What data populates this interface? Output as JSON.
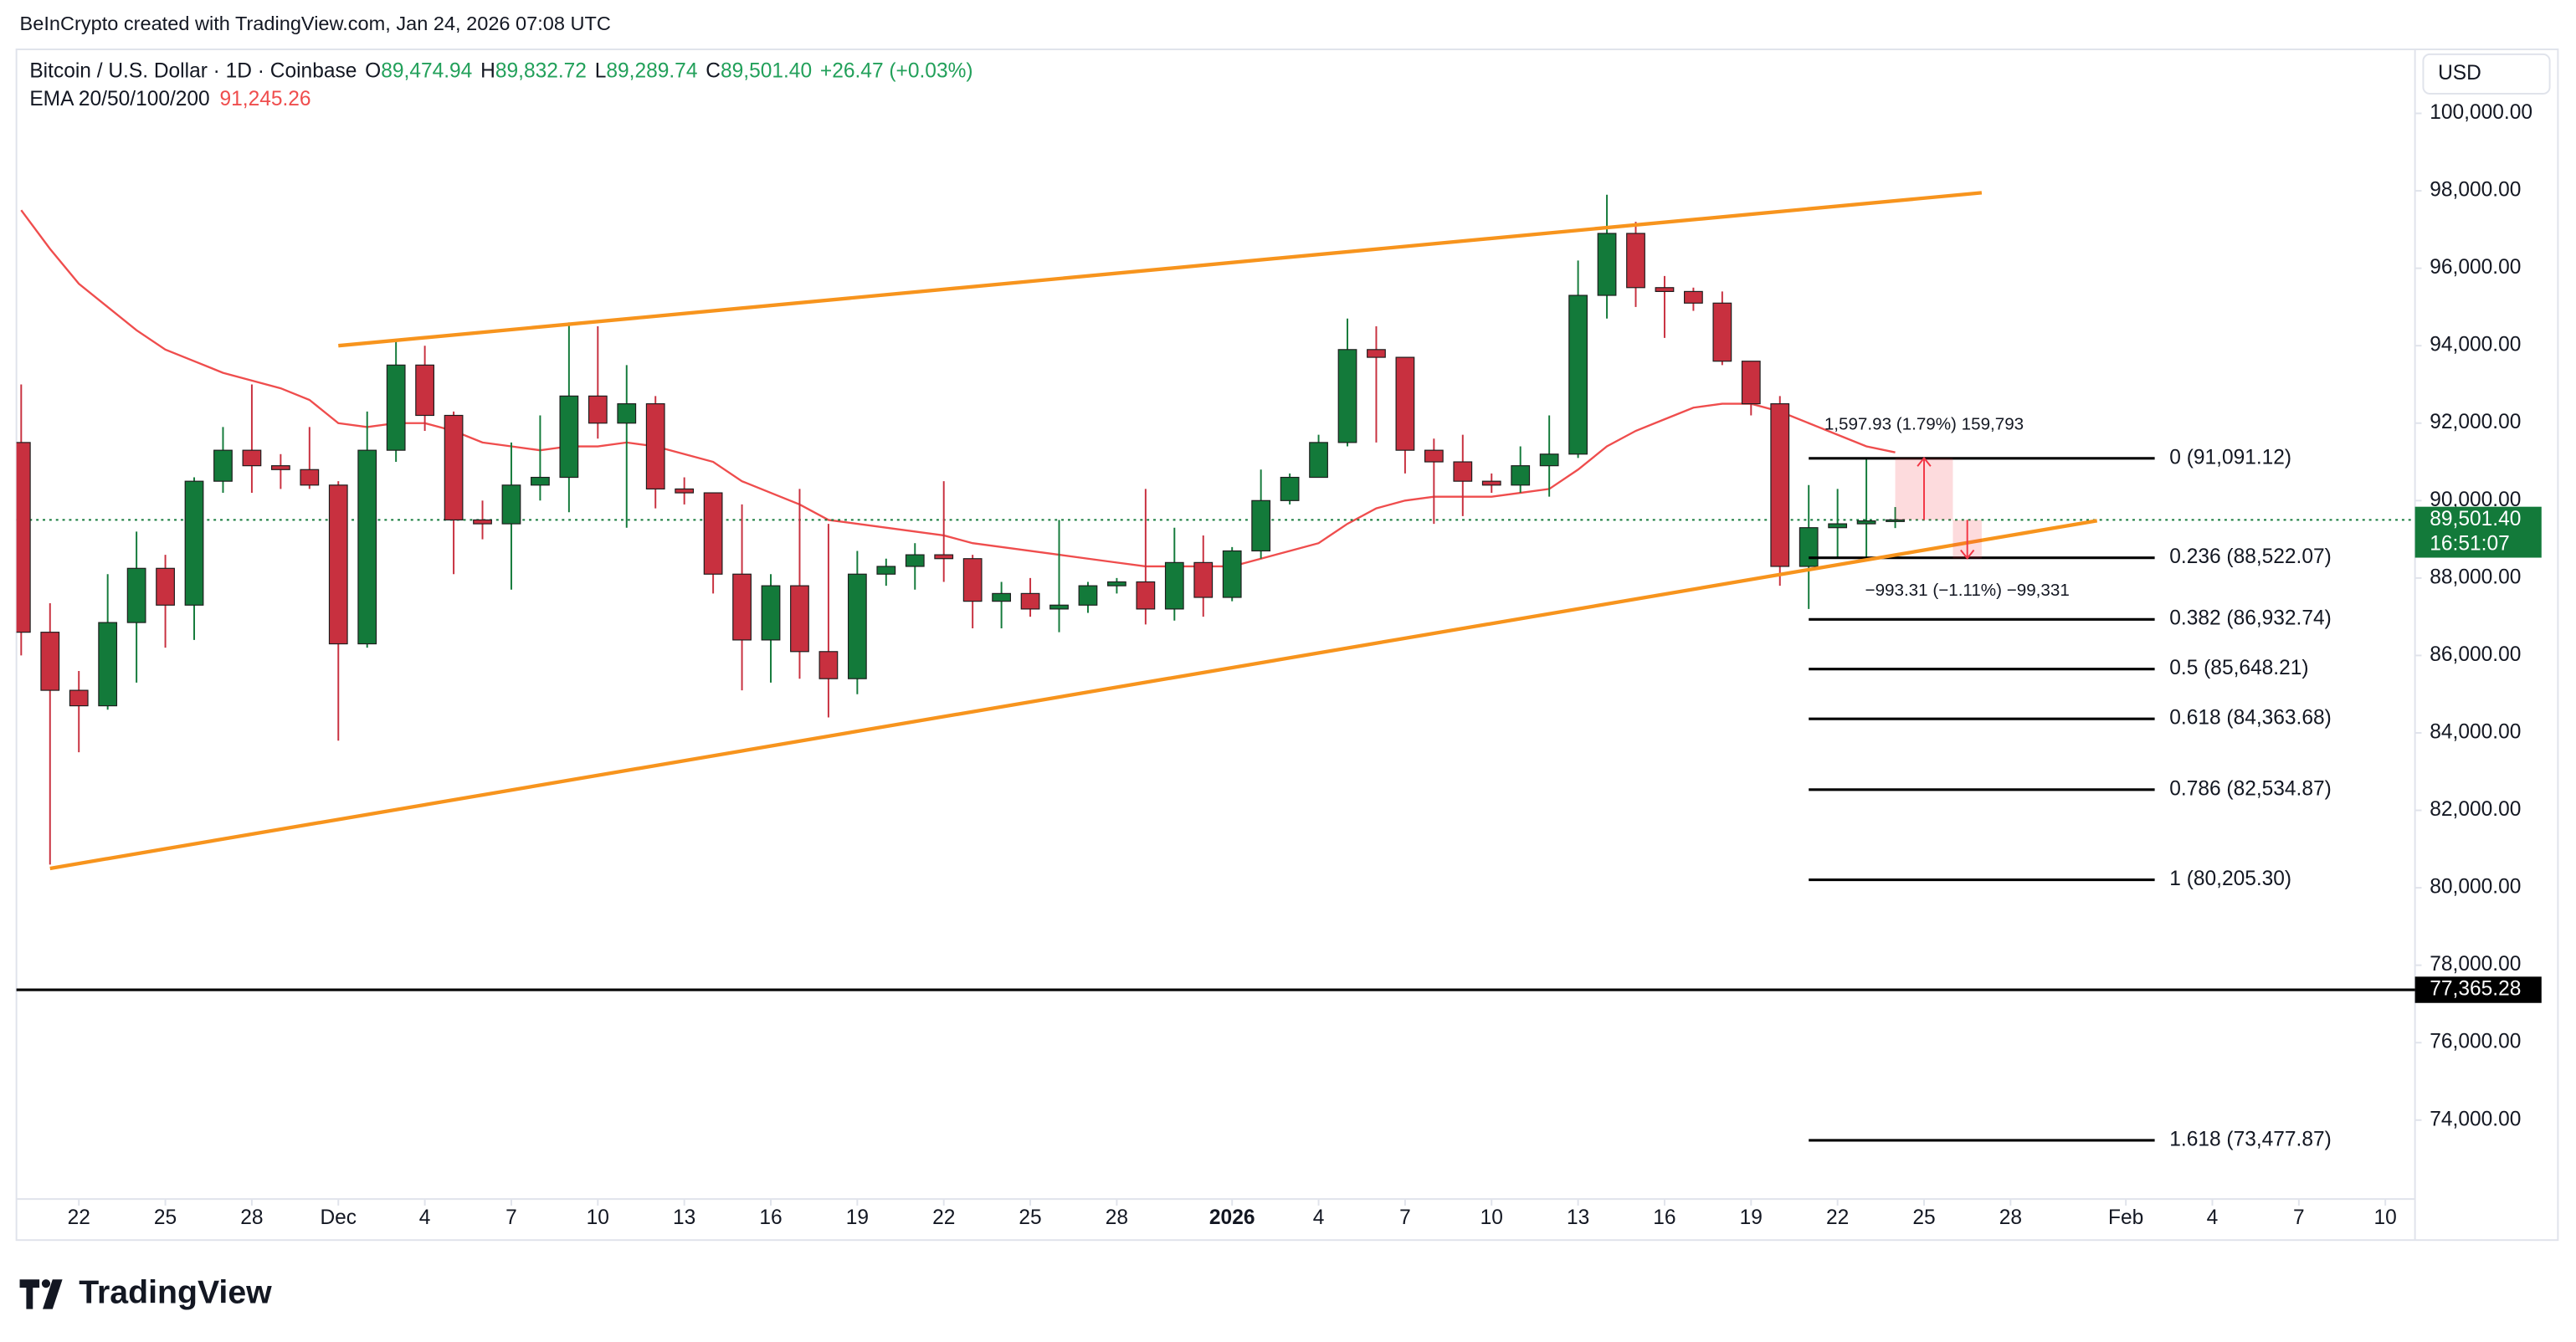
{
  "chart_data": {
    "type": "candlestick",
    "attribution": "BeInCrypto created with TradingView.com, Jan 24, 2026 07:08 UTC",
    "header": {
      "symbol": "Bitcoin / U.S. Dollar · 1D · Coinbase",
      "fields": [
        {
          "key": "O",
          "value": "89,474.94"
        },
        {
          "key": "H",
          "value": "89,832.72"
        },
        {
          "key": "L",
          "value": "89,289.74"
        },
        {
          "key": "C",
          "value": "89,501.40"
        }
      ],
      "change": "+26.47 (+0.03%)",
      "indicator": "EMA 20/50/100/200",
      "indicator_value": "91,245.26"
    },
    "currency": "USD",
    "logo": "TradingView",
    "up_color": "#137a3a",
    "down_color": "#c8303f",
    "x": [
      "2025-11-20",
      "2025-11-21",
      "2025-11-22",
      "2025-11-23",
      "2025-11-24",
      "2025-11-25",
      "2025-11-26",
      "2025-11-27",
      "2025-11-28",
      "2025-11-29",
      "2025-11-30",
      "2025-12-01",
      "2025-12-02",
      "2025-12-03",
      "2025-12-04",
      "2025-12-05",
      "2025-12-06",
      "2025-12-07",
      "2025-12-08",
      "2025-12-09",
      "2025-12-10",
      "2025-12-11",
      "2025-12-12",
      "2025-12-13",
      "2025-12-14",
      "2025-12-15",
      "2025-12-16",
      "2025-12-17",
      "2025-12-18",
      "2025-12-19",
      "2025-12-20",
      "2025-12-21",
      "2025-12-22",
      "2025-12-23",
      "2025-12-24",
      "2025-12-25",
      "2025-12-26",
      "2025-12-27",
      "2025-12-28",
      "2025-12-29",
      "2025-12-30",
      "2025-12-31",
      "2026-01-01",
      "2026-01-02",
      "2026-01-03",
      "2026-01-04",
      "2026-01-05",
      "2026-01-06",
      "2026-01-07",
      "2026-01-08",
      "2026-01-09",
      "2026-01-10",
      "2026-01-11",
      "2026-01-12",
      "2026-01-13",
      "2026-01-14",
      "2026-01-15",
      "2026-01-16",
      "2026-01-17",
      "2026-01-18",
      "2026-01-19",
      "2026-01-20",
      "2026-01-21",
      "2026-01-22",
      "2026-01-23",
      "2026-01-24"
    ],
    "open": [
      91500,
      86600,
      85100,
      84700,
      86850,
      88250,
      87300,
      90500,
      91300,
      90900,
      90800,
      90400,
      86300,
      91300,
      93500,
      92200,
      89500,
      89400,
      90400,
      90600,
      92700,
      92000,
      92500,
      90300,
      90200,
      88100,
      86400,
      87800,
      86100,
      85400,
      88100,
      88300,
      88600,
      88500,
      87400,
      87600,
      87200,
      87300,
      87800,
      87900,
      87200,
      88400,
      87500,
      88700,
      90000,
      90600,
      91500,
      93900,
      93700,
      91300,
      91000,
      90500,
      90400,
      90900,
      91200,
      95300,
      96900,
      95500,
      95400,
      95100,
      93600,
      92500,
      88300,
      89300,
      89400,
      89474.94
    ],
    "high": [
      93000,
      87350,
      85600,
      88100,
      89200,
      88600,
      90600,
      91900,
      93000,
      91200,
      91900,
      90500,
      92300,
      94100,
      94000,
      92300,
      90000,
      91500,
      92200,
      94600,
      94500,
      93500,
      92700,
      90600,
      90200,
      89900,
      88100,
      90300,
      89400,
      88700,
      88500,
      88900,
      90500,
      88600,
      87900,
      88000,
      89500,
      87900,
      88000,
      90300,
      89300,
      89100,
      88800,
      90800,
      90700,
      91700,
      94700,
      94500,
      93700,
      91600,
      91700,
      90700,
      91400,
      92200,
      96200,
      97900,
      97200,
      95800,
      95500,
      95400,
      93600,
      92700,
      90400,
      90300,
      91100,
      89832.72
    ],
    "low": [
      86000,
      80600,
      83500,
      84600,
      85300,
      86200,
      86400,
      90200,
      90200,
      90300,
      90300,
      83800,
      86200,
      91000,
      91800,
      88100,
      89000,
      87700,
      90000,
      89700,
      91600,
      89300,
      89800,
      89900,
      87600,
      85100,
      85300,
      85400,
      84400,
      85000,
      87800,
      87700,
      87900,
      86700,
      86700,
      87000,
      86600,
      87100,
      87600,
      86800,
      86900,
      87000,
      87400,
      88500,
      89900,
      90600,
      91400,
      91500,
      90700,
      89400,
      89600,
      90200,
      90200,
      90100,
      91100,
      94700,
      95000,
      94200,
      94900,
      93500,
      92200,
      87800,
      87200,
      88500,
      88500,
      89289.74
    ],
    "close": [
      86600,
      85100,
      84700,
      86850,
      88250,
      87300,
      90500,
      91300,
      90900,
      90800,
      90400,
      86300,
      91300,
      93500,
      92200,
      89500,
      89400,
      90400,
      90600,
      92700,
      92000,
      92500,
      90300,
      90200,
      88100,
      86400,
      87800,
      86100,
      85400,
      88100,
      88300,
      88600,
      88500,
      87400,
      87600,
      87200,
      87300,
      87800,
      87900,
      87200,
      88400,
      87500,
      88700,
      90000,
      90600,
      91500,
      93900,
      93700,
      91300,
      91000,
      90500,
      90400,
      90900,
      91200,
      95300,
      96900,
      95500,
      95400,
      95100,
      93600,
      92500,
      88300,
      89300,
      89400,
      89474.94,
      89501.4
    ],
    "ema": {
      "color": "#ef4d4d",
      "values": [
        97500,
        96500,
        95600,
        95000,
        94400,
        93900,
        93600,
        93300,
        93100,
        92900,
        92600,
        92000,
        91900,
        92000,
        92000,
        91800,
        91500,
        91400,
        91300,
        91400,
        91400,
        91500,
        91400,
        91200,
        91000,
        90500,
        90200,
        89900,
        89500,
        89400,
        89300,
        89200,
        89100,
        88900,
        88800,
        88700,
        88600,
        88500,
        88400,
        88300,
        88300,
        88300,
        88300,
        88500,
        88700,
        88900,
        89400,
        89800,
        90000,
        90100,
        90100,
        90100,
        90200,
        90300,
        90800,
        91400,
        91800,
        92100,
        92400,
        92500,
        92500,
        92300,
        92000,
        91700,
        91400,
        91245.26
      ]
    },
    "trendlines": [
      {
        "color": "#f7941d",
        "points": [
          {
            "x": "2025-12-01",
            "y": 94000
          },
          {
            "x": "2026-01-27",
            "y": 97950
          }
        ]
      },
      {
        "color": "#f7941d",
        "points": [
          {
            "x": "2025-11-21",
            "y": 80500
          },
          {
            "x": "2026-01-31",
            "y": 89480
          }
        ]
      }
    ],
    "fib": {
      "start": "2026-01-21",
      "end": "2026-02-02",
      "levels": [
        {
          "value": 91091.12,
          "label": "0 (91,091.12)"
        },
        {
          "value": 88522.07,
          "label": "0.236 (88,522.07)"
        },
        {
          "value": 86932.74,
          "label": "0.382 (86,932.74)"
        },
        {
          "value": 85648.21,
          "label": "0.5 (85,648.21)"
        },
        {
          "value": 84363.68,
          "label": "0.618 (84,363.68)"
        },
        {
          "value": 82534.87,
          "label": "0.786 (82,534.87)"
        },
        {
          "value": 80205.3,
          "label": "1 (80,205.30)"
        },
        {
          "value": 73477.87,
          "label": "1.618 (73,477.87)"
        }
      ]
    },
    "measures": [
      {
        "start": "2026-01-24",
        "end": "2026-01-26",
        "from": 89501.4,
        "to": 91099.33,
        "label": "1,597.93 (1.79%) 159,793"
      },
      {
        "start": "2026-01-26",
        "end": "2026-01-27",
        "from": 89501.4,
        "to": 88508.09,
        "label": "−993.31 (−1.11%) −99,331"
      }
    ],
    "level": {
      "value": 77365.28,
      "label": "77,365.28"
    },
    "last_price": {
      "value": 89501.4,
      "label": "89,501.40",
      "countdown": "16:51:07"
    },
    "grid": false,
    "xlim": [
      "2025-11-20",
      "2026-02-11"
    ],
    "ylim": [
      72000,
      101000
    ],
    "yticks": [
      {
        "value": 74000,
        "label": "74,000.00"
      },
      {
        "value": 76000,
        "label": "76,000.00"
      },
      {
        "value": 78000,
        "label": "78,000.00"
      },
      {
        "value": 80000,
        "label": "80,000.00"
      },
      {
        "value": 82000,
        "label": "82,000.00"
      },
      {
        "value": 84000,
        "label": "84,000.00"
      },
      {
        "value": 86000,
        "label": "86,000.00"
      },
      {
        "value": 88000,
        "label": "88,000.00"
      },
      {
        "value": 90000,
        "label": "90,000.00"
      },
      {
        "value": 92000,
        "label": "92,000.00"
      },
      {
        "value": 94000,
        "label": "94,000.00"
      },
      {
        "value": 96000,
        "label": "96,000.00"
      },
      {
        "value": 98000,
        "label": "98,000.00"
      },
      {
        "value": 100000,
        "label": "100,000.00"
      }
    ],
    "xticks": [
      {
        "value": "2025-11-22",
        "label": "22"
      },
      {
        "value": "2025-11-25",
        "label": "25"
      },
      {
        "value": "2025-11-28",
        "label": "28"
      },
      {
        "value": "2025-12-01",
        "label": "Dec"
      },
      {
        "value": "2025-12-04",
        "label": "4"
      },
      {
        "value": "2025-12-07",
        "label": "7"
      },
      {
        "value": "2025-12-10",
        "label": "10"
      },
      {
        "value": "2025-12-13",
        "label": "13"
      },
      {
        "value": "2025-12-16",
        "label": "16"
      },
      {
        "value": "2025-12-19",
        "label": "19"
      },
      {
        "value": "2025-12-22",
        "label": "22"
      },
      {
        "value": "2025-12-25",
        "label": "25"
      },
      {
        "value": "2025-12-28",
        "label": "28"
      },
      {
        "value": "2026-01-01",
        "label": "2026"
      },
      {
        "value": "2026-01-04",
        "label": "4"
      },
      {
        "value": "2026-01-07",
        "label": "7"
      },
      {
        "value": "2026-01-10",
        "label": "10"
      },
      {
        "value": "2026-01-13",
        "label": "13"
      },
      {
        "value": "2026-01-16",
        "label": "16"
      },
      {
        "value": "2026-01-19",
        "label": "19"
      },
      {
        "value": "2026-01-22",
        "label": "22"
      },
      {
        "value": "2026-01-25",
        "label": "25"
      },
      {
        "value": "2026-01-28",
        "label": "28"
      },
      {
        "value": "2026-02-01",
        "label": "Feb"
      },
      {
        "value": "2026-02-04",
        "label": "4"
      },
      {
        "value": "2026-02-07",
        "label": "7"
      },
      {
        "value": "2026-02-10",
        "label": "10"
      }
    ]
  }
}
